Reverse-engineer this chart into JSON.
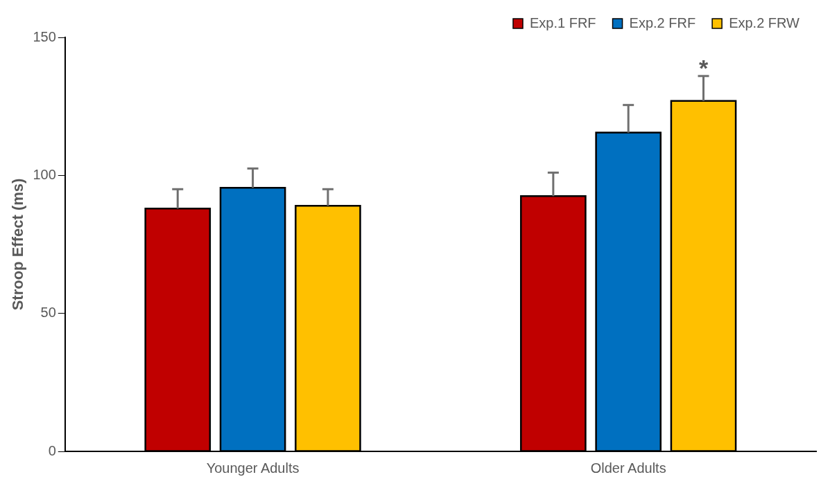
{
  "chart_data": {
    "type": "bar",
    "ylabel": "Stroop Effect (ms)",
    "categories": [
      "Younger Adults",
      "Older Adults"
    ],
    "series": [
      {
        "name": "Exp.1 FRF",
        "color": "#c00000",
        "values": [
          88,
          92.5
        ],
        "errors": [
          [
            88,
            95
          ],
          [
            92.5,
            101
          ]
        ]
      },
      {
        "name": "Exp.2 FRF",
        "color": "#0070c0",
        "values": [
          95.5,
          115.5
        ],
        "errors": [
          [
            95.5,
            102.5
          ],
          [
            115.5,
            125.5
          ]
        ]
      },
      {
        "name": "Exp.2 FRW",
        "color": "#ffc000",
        "values": [
          89,
          127
        ],
        "errors": [
          [
            89,
            95
          ],
          [
            127,
            136
          ]
        ]
      }
    ],
    "ylim": [
      0,
      150
    ],
    "yticks": [
      0,
      50,
      100,
      150
    ],
    "grid": false,
    "legend": "top right",
    "annotations": [
      "*"
    ]
  }
}
